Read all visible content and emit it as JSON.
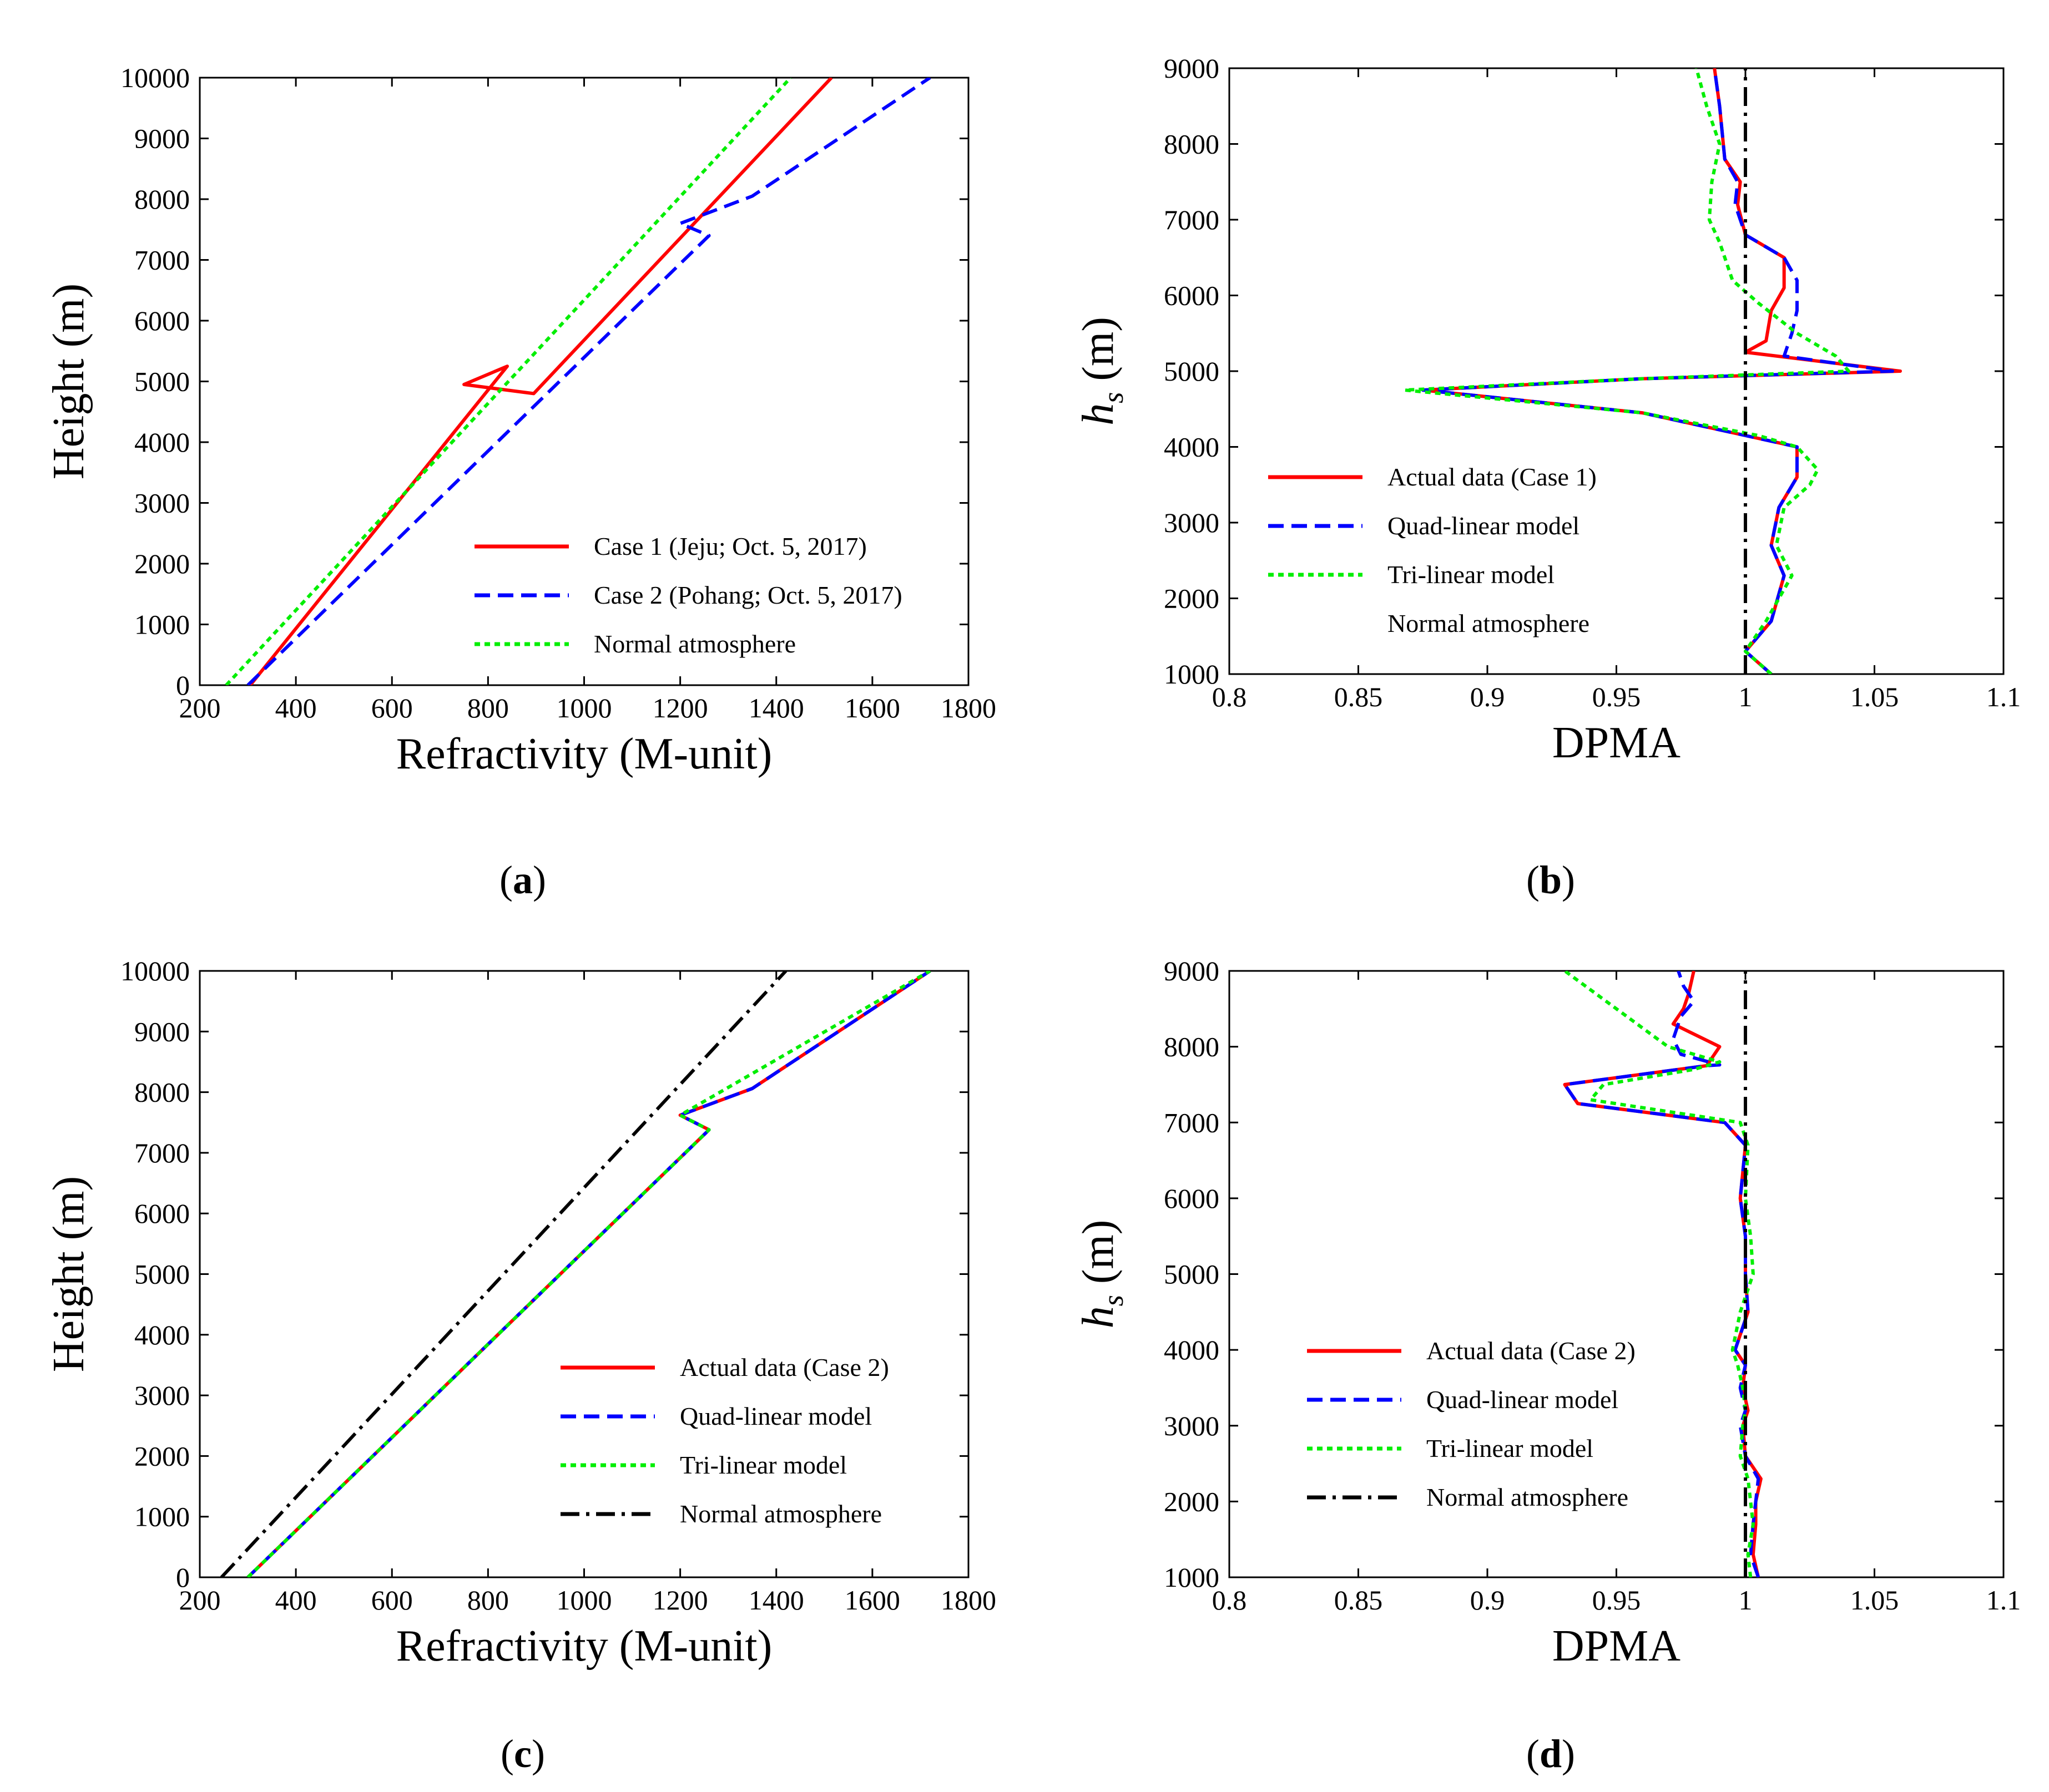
{
  "panel_labels": [
    "(a)",
    "(b)",
    "(c)",
    "(d)"
  ],
  "colors": {
    "red": "#ff0000",
    "blue": "#0000ff",
    "green": "#00ee00",
    "black": "#000000"
  },
  "chart_data": [
    {
      "id": "a",
      "type": "line",
      "xlabel": "Refractivity (M-unit)",
      "ylabel": "Height (m)",
      "xlim": [
        200,
        1800
      ],
      "ylim": [
        0,
        10000
      ],
      "xticks": [
        200,
        400,
        600,
        800,
        1000,
        1200,
        1400,
        1600,
        1800
      ],
      "yticks": [
        0,
        1000,
        2000,
        3000,
        4000,
        5000,
        6000,
        7000,
        8000,
        9000,
        10000
      ],
      "legend_position": "bottom-right",
      "series": [
        {
          "name": "Case 1 (Jeju; Oct. 5, 2017)",
          "style": "solid",
          "color": "#ff0000",
          "x": [
            305,
            840,
            750,
            895,
            1515
          ],
          "y": [
            0,
            5250,
            4950,
            4800,
            10000
          ]
        },
        {
          "name": "Case 2 (Pohang; Oct. 5, 2017)",
          "style": "dashed",
          "color": "#0000ff",
          "x": [
            300,
            1260,
            1200,
            1350,
            1720
          ],
          "y": [
            0,
            7400,
            7600,
            8050,
            10000
          ]
        },
        {
          "name": "Normal atmosphere",
          "style": "dotted",
          "color": "#00ee00",
          "x": [
            255,
            1430
          ],
          "y": [
            0,
            10000
          ]
        }
      ]
    },
    {
      "id": "b",
      "type": "line",
      "xlabel": "DPMA",
      "ylabel": "h_s (m)",
      "ylabel_main": "h",
      "ylabel_sub": "s",
      "ylabel_rest": " (m)",
      "xlim": [
        0.8,
        1.1
      ],
      "ylim": [
        1000,
        9000
      ],
      "xticks": [
        0.8,
        0.85,
        0.9,
        0.95,
        1,
        1.05,
        1.1
      ],
      "xtick_labels": [
        "0.8",
        "0.85",
        "0.9",
        "0.95",
        "1",
        "1.05",
        "1.1"
      ],
      "yticks": [
        1000,
        2000,
        3000,
        4000,
        5000,
        6000,
        7000,
        8000,
        9000
      ],
      "legend_position": "bottom-left",
      "series": [
        {
          "name": "Actual data (Case 1)",
          "style": "solid",
          "color": "#ff0000",
          "x": [
            1.01,
            1.0,
            1.0,
            1.01,
            1.015,
            1.01,
            1.013,
            1.02,
            1.02,
            1.0,
            0.96,
            0.875,
            0.96,
            1.06,
            1.0,
            1.008,
            1.01,
            1.015,
            1.015,
            1.0,
            0.997,
            0.998,
            0.992,
            0.99,
            0.988
          ],
          "y": [
            1000,
            1300,
            1300,
            1700,
            2300,
            2700,
            3200,
            3600,
            4000,
            4150,
            4450,
            4750,
            4900,
            5000,
            5250,
            5400,
            5800,
            6100,
            6500,
            6800,
            7200,
            7500,
            7800,
            8500,
            9000
          ]
        },
        {
          "name": "Quad-linear model",
          "style": "dashed",
          "color": "#0000ff",
          "x": [
            1.01,
            1.0,
            1.0,
            1.01,
            1.015,
            1.01,
            1.013,
            1.02,
            1.02,
            1.0,
            0.96,
            0.875,
            0.96,
            1.057,
            1.015,
            1.018,
            1.02,
            1.02,
            1.015,
            1.0,
            0.996,
            0.997,
            0.992,
            0.99,
            0.988
          ],
          "y": [
            1000,
            1300,
            1300,
            1700,
            2300,
            2700,
            3200,
            3600,
            4000,
            4150,
            4450,
            4750,
            4900,
            5000,
            5200,
            5500,
            5800,
            6200,
            6500,
            6800,
            7200,
            7500,
            7800,
            8500,
            9000
          ]
        },
        {
          "name": "Tri-linear model",
          "style": "dotted",
          "color": "#00ee00",
          "x": [
            1.01,
            1.0,
            1.0,
            1.008,
            1.018,
            1.012,
            1.015,
            1.025,
            1.028,
            1.02,
            1.005,
            0.96,
            0.868,
            0.96,
            1.04,
            1.035,
            1.02,
            1.005,
            0.995,
            0.99,
            0.986,
            0.987,
            0.99,
            0.985,
            0.981
          ],
          "y": [
            1000,
            1300,
            1300,
            1700,
            2300,
            2700,
            3200,
            3500,
            3700,
            4000,
            4150,
            4450,
            4750,
            4900,
            5000,
            5200,
            5500,
            5900,
            6200,
            6700,
            7000,
            7500,
            8000,
            8500,
            9000
          ]
        },
        {
          "name": "Normal atmosphere",
          "style": "dashdot",
          "color": "#000000",
          "x": [
            1.0,
            1.0
          ],
          "y": [
            1000,
            9000
          ]
        }
      ]
    },
    {
      "id": "c",
      "type": "line",
      "xlabel": "Refractivity (M-unit)",
      "ylabel": "Height (m)",
      "xlim": [
        200,
        1800
      ],
      "ylim": [
        0,
        10000
      ],
      "xticks": [
        200,
        400,
        600,
        800,
        1000,
        1200,
        1400,
        1600,
        1800
      ],
      "yticks": [
        0,
        1000,
        2000,
        3000,
        4000,
        5000,
        6000,
        7000,
        8000,
        9000,
        10000
      ],
      "legend_position": "bottom-right",
      "series": [
        {
          "name": "Actual data (Case 2)",
          "style": "solid",
          "color": "#ff0000",
          "x": [
            300,
            1260,
            1200,
            1350,
            1720
          ],
          "y": [
            0,
            7380,
            7620,
            8060,
            10000
          ]
        },
        {
          "name": "Quad-linear model",
          "style": "dashed",
          "color": "#0000ff",
          "x": [
            300,
            1260,
            1200,
            1350,
            1720
          ],
          "y": [
            0,
            7380,
            7620,
            8060,
            10000
          ]
        },
        {
          "name": "Tri-linear model",
          "style": "dotted",
          "color": "#00ee00",
          "x": [
            300,
            1260,
            1200,
            1720
          ],
          "y": [
            0,
            7380,
            7620,
            10000
          ]
        },
        {
          "name": "Normal atmosphere",
          "style": "dashdot",
          "color": "#000000",
          "x": [
            245,
            1420
          ],
          "y": [
            0,
            10000
          ]
        }
      ]
    },
    {
      "id": "d",
      "type": "line",
      "xlabel": "DPMA",
      "ylabel": "h_s (m)",
      "ylabel_main": "h",
      "ylabel_sub": "s",
      "ylabel_rest": " (m)",
      "xlim": [
        0.8,
        1.1
      ],
      "ylim": [
        1000,
        9000
      ],
      "xticks": [
        0.8,
        0.85,
        0.9,
        0.95,
        1,
        1.05,
        1.1
      ],
      "xtick_labels": [
        "0.8",
        "0.85",
        "0.9",
        "0.95",
        "1",
        "1.05",
        "1.1"
      ],
      "yticks": [
        1000,
        2000,
        3000,
        4000,
        5000,
        6000,
        7000,
        8000,
        9000
      ],
      "legend_position": "center-left",
      "series": [
        {
          "name": "Actual data (Case 2)",
          "style": "solid",
          "color": "#ff0000",
          "x": [
            1.005,
            1.003,
            1.004,
            1.004,
            1.006,
            1.0,
            0.999,
            1.001,
            0.999,
            1.0,
            0.996,
            1.001,
            1.0,
            1.0,
            0.998,
            1.0,
            0.992,
            0.935,
            0.93,
            0.985,
            0.99,
            0.972,
            0.976,
            0.978,
            0.98
          ],
          "y": [
            1000,
            1300,
            1700,
            2000,
            2300,
            2600,
            3000,
            3200,
            3500,
            3800,
            4000,
            4500,
            5000,
            5500,
            6000,
            6700,
            7000,
            7250,
            7500,
            7750,
            8000,
            8300,
            8500,
            8700,
            9000
          ]
        },
        {
          "name": "Quad-linear model",
          "style": "dashed",
          "color": "#0000ff",
          "x": [
            1.005,
            1.002,
            1.003,
            1.004,
            1.005,
            1.0,
            0.998,
            1.0,
            0.998,
            1.0,
            0.996,
            1.001,
            1.0,
            1.0,
            0.998,
            1.0,
            0.992,
            0.935,
            0.93,
            0.985,
            0.99,
            0.975,
            0.972,
            0.975,
            0.98,
            0.976,
            0.974
          ],
          "y": [
            1000,
            1300,
            1700,
            2000,
            2300,
            2600,
            3000,
            3200,
            3500,
            3800,
            4000,
            4500,
            5000,
            5500,
            6000,
            6700,
            7000,
            7250,
            7500,
            7750,
            7760,
            7900,
            8100,
            8400,
            8600,
            8800,
            9000
          ]
        },
        {
          "name": "Tri-linear model",
          "style": "dotted",
          "color": "#00ee00",
          "x": [
            1.002,
            1.001,
            1.003,
            1.002,
            1.001,
            0.998,
            0.999,
            1.0,
            0.999,
            0.997,
            0.995,
            0.998,
            1.003,
            1.002,
            1.0,
            1.001,
            0.998,
            0.94,
            0.945,
            0.98,
            0.99,
            0.97,
            0.95,
            0.93
          ],
          "y": [
            1000,
            1300,
            1700,
            2000,
            2300,
            2600,
            3000,
            3200,
            3500,
            3800,
            4000,
            4500,
            5000,
            5500,
            6000,
            6700,
            7000,
            7300,
            7500,
            7700,
            7800,
            8000,
            8500,
            9000
          ]
        },
        {
          "name": "Normal atmosphere",
          "style": "dashdot",
          "color": "#000000",
          "x": [
            1.0,
            1.0
          ],
          "y": [
            1000,
            9000
          ]
        }
      ]
    }
  ]
}
